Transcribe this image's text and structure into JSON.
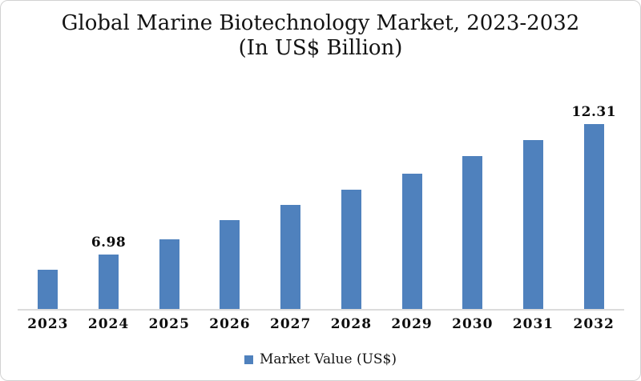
{
  "frame": {
    "background": "#ffffff",
    "border_color": "#d2d2d2"
  },
  "chart_data": {
    "type": "bar",
    "title": "Global Marine Biotechnology Market, 2023-2032",
    "subtitle": "(In US$ Billion)",
    "categories": [
      "2023",
      "2024",
      "2025",
      "2026",
      "2027",
      "2028",
      "2029",
      "2030",
      "2031",
      "2032"
    ],
    "series": [
      {
        "name": "Market Value (US$)",
        "color": "#4f81bd",
        "values": [
          6.36,
          6.98,
          7.62,
          8.39,
          9.01,
          9.63,
          10.28,
          11.0,
          11.66,
          12.31
        ]
      }
    ],
    "data_labels": [
      "",
      "6.98",
      "",
      "",
      "",
      "",
      "",
      "",
      "",
      "12.31"
    ],
    "ylim": [
      4.76,
      13.75
    ],
    "grid": false,
    "y_axis_visible": false,
    "axis_line_color": "#dcdcdc",
    "legend_position": "bottom"
  }
}
